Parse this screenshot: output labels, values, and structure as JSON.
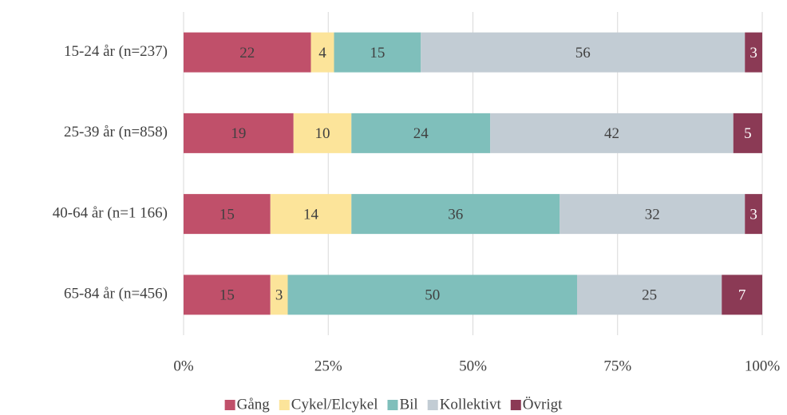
{
  "chart_data": {
    "type": "stacked-barh",
    "categories": [
      "15-24 år (n=237)",
      "25-39 år (n=858)",
      "40-64 år (n=1 166)",
      "65-84 år (n=456)"
    ],
    "series": [
      {
        "name": "Gång",
        "color": "#c0506a",
        "values": [
          22,
          19,
          15,
          15
        ]
      },
      {
        "name": "Cykel/Elcykel",
        "color": "#fce49a",
        "values": [
          4,
          10,
          14,
          3
        ]
      },
      {
        "name": "Bil",
        "color": "#7fbfbb",
        "values": [
          15,
          24,
          36,
          50
        ]
      },
      {
        "name": "Kollektivt",
        "color": "#c2ccd4",
        "values": [
          56,
          42,
          32,
          25
        ]
      },
      {
        "name": "Övrigt",
        "color": "#8b3a55",
        "values": [
          3,
          5,
          3,
          7
        ]
      }
    ],
    "xlim": [
      0,
      100
    ],
    "xticks": [
      {
        "value": 0,
        "label": "0%"
      },
      {
        "value": 25,
        "label": "25%"
      },
      {
        "value": 50,
        "label": "50%"
      },
      {
        "value": 75,
        "label": "75%"
      },
      {
        "value": 100,
        "label": "100%"
      }
    ],
    "grid": true,
    "legend": "bottom"
  }
}
